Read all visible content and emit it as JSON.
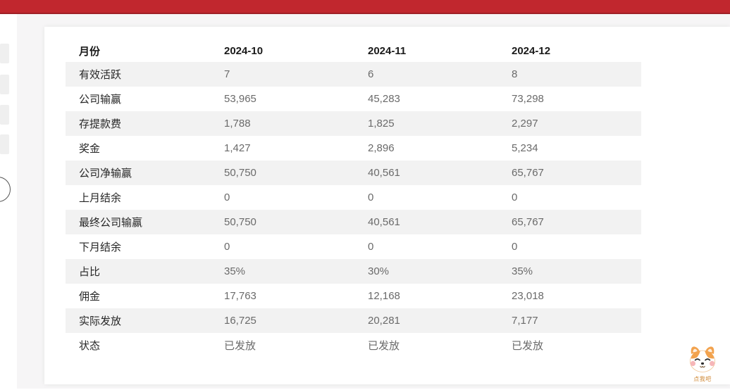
{
  "topbar": {
    "color": "#c1272e"
  },
  "table": {
    "header": {
      "label": "月份",
      "cols": [
        "2024-10",
        "2024-11",
        "2024-12"
      ]
    },
    "rows": [
      {
        "label": "有效活跃",
        "values": [
          "7",
          "6",
          "8"
        ]
      },
      {
        "label": "公司输赢",
        "values": [
          "53,965",
          "45,283",
          "73,298"
        ]
      },
      {
        "label": "存提款费",
        "values": [
          "1,788",
          "1,825",
          "2,297"
        ]
      },
      {
        "label": "奖金",
        "values": [
          "1,427",
          "2,896",
          "5,234"
        ]
      },
      {
        "label": "公司净输赢",
        "values": [
          "50,750",
          "40,561",
          "65,767"
        ]
      },
      {
        "label": "上月结余",
        "values": [
          "0",
          "0",
          "0"
        ]
      },
      {
        "label": "最终公司输赢",
        "values": [
          "50,750",
          "40,561",
          "65,767"
        ]
      },
      {
        "label": "下月结余",
        "values": [
          "0",
          "0",
          "0"
        ]
      },
      {
        "label": "占比",
        "values": [
          "35%",
          "30%",
          "35%"
        ]
      },
      {
        "label": "佣金",
        "values": [
          "17,763",
          "12,168",
          "23,018"
        ]
      },
      {
        "label": "实际发放",
        "values": [
          "16,725",
          "20,281",
          "7,177"
        ]
      },
      {
        "label": "状态",
        "values": [
          "已发放",
          "已发放",
          "已发放"
        ]
      }
    ]
  },
  "mascot": {
    "caption": "点我吧"
  },
  "colors": {
    "topbar_red": "#c1272e",
    "topbar_red_dark": "#9f2026",
    "row_stripe": "#f2f2f2",
    "label_text": "#262626",
    "value_text": "#6a6a6a",
    "page_background": "#f6f5f6",
    "mascot_orange": "#f2a24d"
  }
}
